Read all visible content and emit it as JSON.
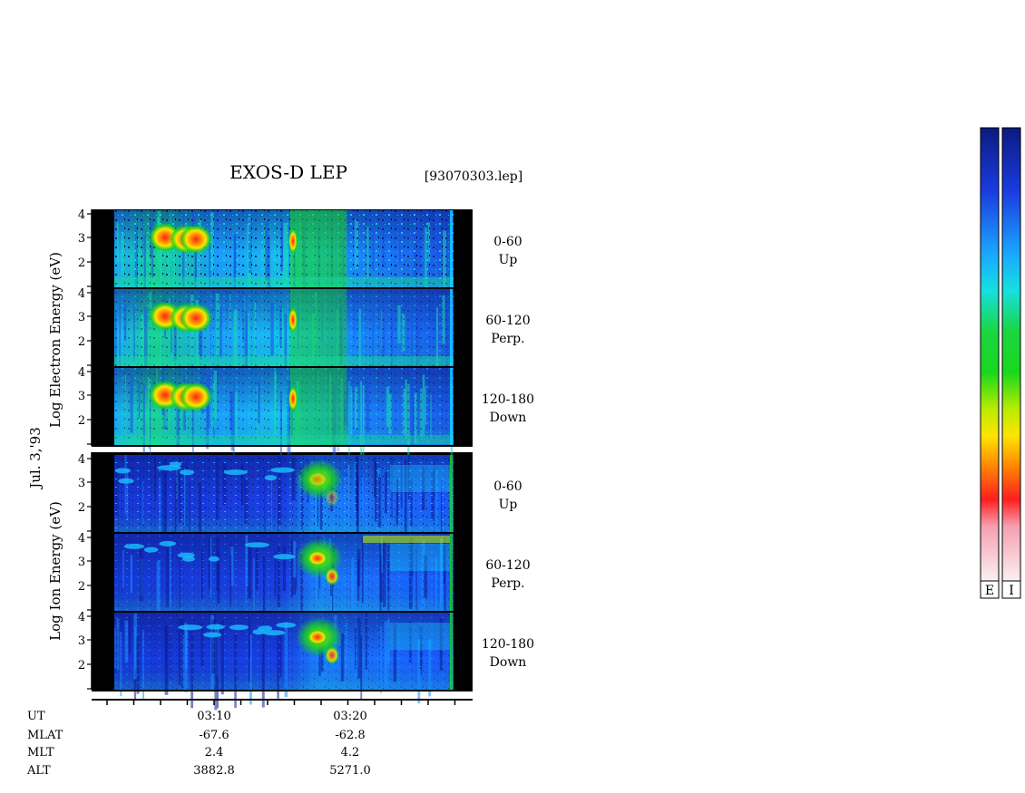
{
  "header": {
    "title": "EXOS-D LEP",
    "file": "[93070303.lep]"
  },
  "date_label": "Jul. 3,'93",
  "groups": [
    {
      "id": "electron",
      "ylabel": "Log   Electron   Energy (eV)"
    },
    {
      "id": "ion",
      "ylabel": "Log   Ion   Energy (eV)"
    }
  ],
  "chart_data": {
    "type": "heatmap",
    "title": "EXOS-D LEP",
    "x_axis": {
      "label": "UT",
      "tick_labels": [
        "03:10",
        "03:20"
      ]
    },
    "y_axis": {
      "scale": "log",
      "tick_labels": [
        "2",
        "3",
        "4"
      ],
      "unit": "eV"
    },
    "panels": [
      {
        "species": "Electron",
        "pitch_angle": "0-60",
        "direction": "Up"
      },
      {
        "species": "Electron",
        "pitch_angle": "60-120",
        "direction": "Perp."
      },
      {
        "species": "Electron",
        "pitch_angle": "120-180",
        "direction": "Down"
      },
      {
        "species": "Ion",
        "pitch_angle": "0-60",
        "direction": "Up"
      },
      {
        "species": "Ion",
        "pitch_angle": "60-120",
        "direction": "Perp."
      },
      {
        "species": "Ion",
        "pitch_angle": "120-180",
        "direction": "Down"
      }
    ],
    "orbit_table": [
      {
        "name": "UT",
        "values": [
          "03:10",
          "03:20"
        ]
      },
      {
        "name": "MLAT",
        "values": [
          "-67.6",
          "-62.8"
        ]
      },
      {
        "name": "MLT",
        "values": [
          "2.4",
          "4.2"
        ]
      },
      {
        "name": "ALT",
        "values": [
          "3882.8",
          "5271.0"
        ]
      }
    ],
    "colorbars": [
      {
        "label": "E"
      },
      {
        "label": "I"
      }
    ],
    "colormap": [
      "#f8eef2",
      "#f5c0c8",
      "#ff2020",
      "#ff8a00",
      "#ffe400",
      "#b8ec00",
      "#19d51d",
      "#18e8c8",
      "#1ac0ff",
      "#1a5aff",
      "#1010c8",
      "#0c1a80"
    ]
  }
}
